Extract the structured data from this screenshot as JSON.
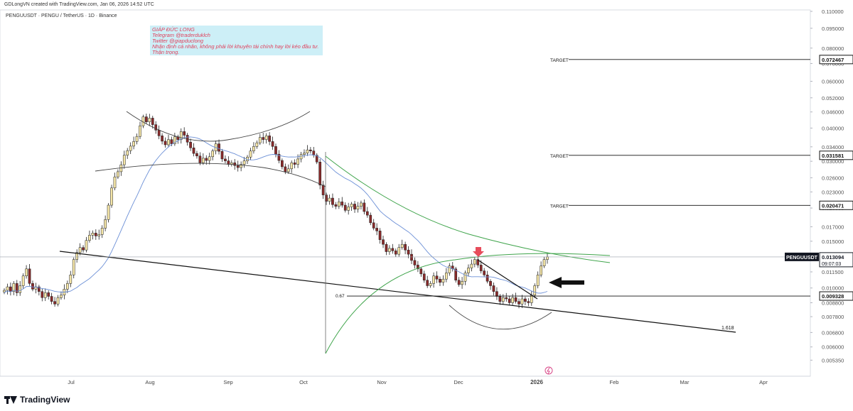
{
  "header": {
    "created_by": "GDLongVN created with TradingView.com, Jan 06, 2026 14:52 UTC",
    "symbol_line": "PENGUUSDT · PENGU / TetherUS · 1D · Binance"
  },
  "note": {
    "lines": [
      "GIÁP ĐỨC LONG",
      "Telegram @traderduklch",
      "Twitter @giapduclong",
      "Nhận định cá nhân, không phải lời khuyên tài chính hay lời kéo đầu tư.",
      "Thận trọng."
    ]
  },
  "footer": {
    "brand": "TradingView"
  },
  "colors": {
    "up": "#1a1a1a",
    "up_body": "#f5e6a8",
    "down": "#1a1a1a",
    "down_body": "#8a2a2a",
    "ma": "#6b8fd6",
    "green_curve": "#3fa44b",
    "trend": "#111111",
    "arrow_red": "#e74c5b"
  },
  "chart_data": {
    "type": "candlestick",
    "title": "PENGUUSDT · PENGU / TetherUS · 1D · Binance",
    "x_tick_labels": [
      "Jul",
      "Aug",
      "Sep",
      "Oct",
      "Nov",
      "Dec",
      "2026",
      "Feb",
      "Mar",
      "Apr"
    ],
    "y_scale": "log",
    "y_range": [
      0.0048,
      0.11
    ],
    "y_tick_labels": [
      "0.110000",
      "0.095000",
      "0.080000",
      "0.070000",
      "0.060000",
      "0.052000",
      "0.046000",
      "0.040000",
      "0.034000",
      "0.030000",
      "0.026000",
      "0.023000",
      "0.020000",
      "0.017000",
      "0.015000",
      "0.013000",
      "0.011500",
      "0.010000",
      "0.008800",
      "0.007800",
      "0.006800",
      "0.006000",
      "0.005350"
    ],
    "price_label": {
      "symbol": "PENGUUSDT",
      "value": "0.013094",
      "countdown": "09:07:03"
    },
    "targets": [
      {
        "label": "TARGET",
        "value": "0.072467"
      },
      {
        "label": "TARGET",
        "value": "0.031581"
      },
      {
        "label": "TARGET",
        "value": "0.020471"
      }
    ],
    "support": {
      "label": "0.67",
      "value": "0.009328"
    },
    "fib_label": "1.618",
    "closes": [
      0.0098,
      0.0101,
      0.0097,
      0.0104,
      0.0096,
      0.0102,
      0.0111,
      0.0118,
      0.0104,
      0.0099,
      0.0101,
      0.0097,
      0.0092,
      0.0096,
      0.0093,
      0.0089,
      0.0087,
      0.0092,
      0.0094,
      0.0099,
      0.0104,
      0.0112,
      0.0128,
      0.0136,
      0.0142,
      0.0139,
      0.0151,
      0.0158,
      0.0161,
      0.0157,
      0.0159,
      0.0168,
      0.0181,
      0.0205,
      0.0238,
      0.0262,
      0.0274,
      0.0291,
      0.0316,
      0.0329,
      0.0342,
      0.0356,
      0.0372,
      0.0408,
      0.0441,
      0.0422,
      0.0436,
      0.0412,
      0.0393,
      0.0374,
      0.0357,
      0.0346,
      0.0362,
      0.0349,
      0.0371,
      0.0362,
      0.0388,
      0.0376,
      0.0354,
      0.0337,
      0.0321,
      0.0314,
      0.0296,
      0.0308,
      0.0302,
      0.0312,
      0.0328,
      0.0349,
      0.0327,
      0.0306,
      0.0301,
      0.0292,
      0.0296,
      0.0289,
      0.0284,
      0.0292,
      0.0301,
      0.0311,
      0.0328,
      0.0341,
      0.0352,
      0.0369,
      0.0362,
      0.0374,
      0.0356,
      0.0341,
      0.0319,
      0.0302,
      0.0286,
      0.0274,
      0.0281,
      0.0296,
      0.0292,
      0.0306,
      0.0318,
      0.0322,
      0.0331,
      0.0328,
      0.0316,
      0.0298,
      0.0244,
      0.0224,
      0.0212,
      0.0218,
      0.0206,
      0.0203,
      0.0211,
      0.0205,
      0.0196,
      0.0202,
      0.0207,
      0.0198,
      0.0203,
      0.0209,
      0.0194,
      0.0188,
      0.0176,
      0.0168,
      0.0164,
      0.0152,
      0.0146,
      0.0137,
      0.0141,
      0.0138,
      0.0134,
      0.0142,
      0.0146,
      0.0139,
      0.0134,
      0.0127,
      0.0122,
      0.0118,
      0.0113,
      0.0107,
      0.0102,
      0.0104,
      0.0111,
      0.0108,
      0.0105,
      0.0108,
      0.0114,
      0.0121,
      0.0118,
      0.0107,
      0.0103,
      0.0106,
      0.0114,
      0.0119,
      0.0123,
      0.0128,
      0.0122,
      0.0116,
      0.0112,
      0.0106,
      0.0102,
      0.0097,
      0.0093,
      0.0089,
      0.0092,
      0.0091,
      0.0088,
      0.0092,
      0.0089,
      0.0087,
      0.0091,
      0.0089,
      0.0088,
      0.0094,
      0.0102,
      0.0112,
      0.0121,
      0.0128,
      0.0131
    ]
  }
}
